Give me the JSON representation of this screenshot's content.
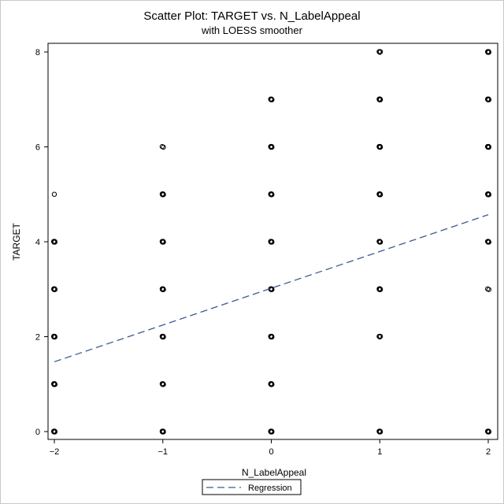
{
  "chart_data": {
    "type": "scatter",
    "title": "Scatter Plot: TARGET vs. N_LabelAppeal",
    "subtitle": "with LOESS smoother",
    "xlabel": "N_LabelAppeal",
    "ylabel": "TARGET",
    "xlim": [
      -2,
      2
    ],
    "ylim": [
      0,
      8
    ],
    "x_ticks": [
      -2,
      -1,
      0,
      1,
      2
    ],
    "y_ticks": [
      0,
      2,
      4,
      6,
      8
    ],
    "grid": false,
    "colors": {
      "points": "#000000",
      "regression": "#3d5a8f",
      "frame": "#000000"
    },
    "points": [
      {
        "x": -2,
        "y": 0,
        "n": 8
      },
      {
        "x": -2,
        "y": 1,
        "n": 6
      },
      {
        "x": -2,
        "y": 2,
        "n": 6
      },
      {
        "x": -2,
        "y": 3,
        "n": 6
      },
      {
        "x": -2,
        "y": 4,
        "n": 6
      },
      {
        "x": -2,
        "y": 5,
        "n": 1
      },
      {
        "x": -1,
        "y": 0,
        "n": 8
      },
      {
        "x": -1,
        "y": 1,
        "n": 4
      },
      {
        "x": -1,
        "y": 2,
        "n": 6
      },
      {
        "x": -1,
        "y": 3,
        "n": 6
      },
      {
        "x": -1,
        "y": 4,
        "n": 6
      },
      {
        "x": -1,
        "y": 5,
        "n": 6
      },
      {
        "x": -1,
        "y": 6,
        "n": 2
      },
      {
        "x": 0,
        "y": 0,
        "n": 8
      },
      {
        "x": 0,
        "y": 1,
        "n": 6
      },
      {
        "x": 0,
        "y": 2,
        "n": 6
      },
      {
        "x": 0,
        "y": 3,
        "n": 6
      },
      {
        "x": 0,
        "y": 4,
        "n": 6
      },
      {
        "x": 0,
        "y": 5,
        "n": 6
      },
      {
        "x": 0,
        "y": 6,
        "n": 6
      },
      {
        "x": 0,
        "y": 7,
        "n": 4
      },
      {
        "x": 1,
        "y": 0,
        "n": 6
      },
      {
        "x": 1,
        "y": 2,
        "n": 3
      },
      {
        "x": 1,
        "y": 3,
        "n": 6
      },
      {
        "x": 1,
        "y": 4,
        "n": 4
      },
      {
        "x": 1,
        "y": 5,
        "n": 6
      },
      {
        "x": 1,
        "y": 6,
        "n": 6
      },
      {
        "x": 1,
        "y": 7,
        "n": 6
      },
      {
        "x": 1,
        "y": 8,
        "n": 3
      },
      {
        "x": 2,
        "y": 0,
        "n": 6
      },
      {
        "x": 2,
        "y": 3,
        "n": 2
      },
      {
        "x": 2,
        "y": 4,
        "n": 4
      },
      {
        "x": 2,
        "y": 5,
        "n": 6
      },
      {
        "x": 2,
        "y": 6,
        "n": 6
      },
      {
        "x": 2,
        "y": 7,
        "n": 6
      },
      {
        "x": 2,
        "y": 8,
        "n": 6
      }
    ],
    "regression": {
      "name": "Regression",
      "style": "dashed",
      "x": [
        -2,
        2
      ],
      "y": [
        1.47,
        4.57
      ]
    },
    "legend": {
      "position": "bottom-center",
      "entries": [
        "Regression"
      ]
    }
  }
}
